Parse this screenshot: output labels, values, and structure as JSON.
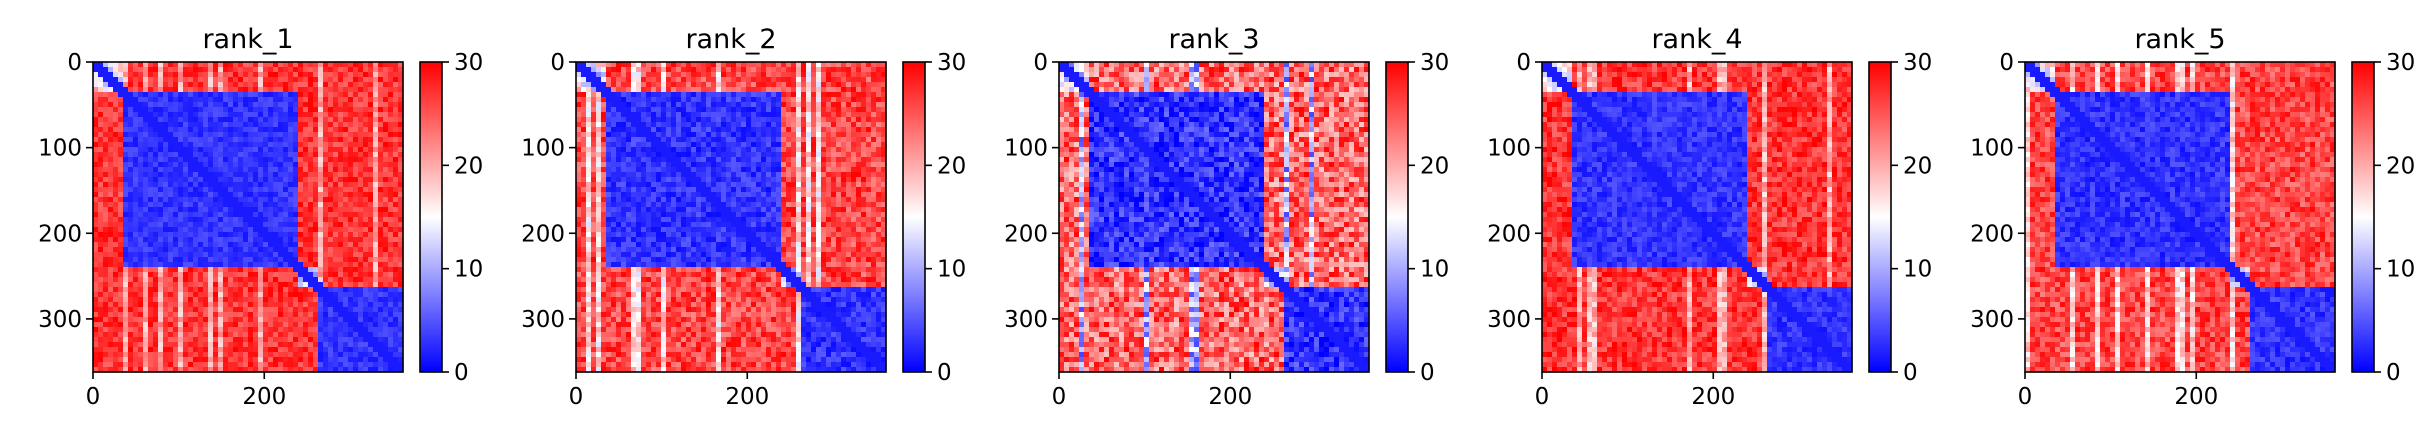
{
  "chart_data": [
    {
      "type": "heatmap",
      "title": "rank_1",
      "x_ticks": [
        0,
        200
      ],
      "y_ticks": [
        0,
        100,
        200,
        300
      ],
      "x_range": [
        0,
        362
      ],
      "y_range": [
        0,
        362
      ],
      "colorbar": {
        "min": 0,
        "max": 30,
        "ticks": [
          0,
          10,
          20,
          30
        ],
        "colormap": "bwr"
      },
      "domains": [
        {
          "start": 0,
          "end": 35,
          "level": "mixed"
        },
        {
          "start": 35,
          "end": 240,
          "level": 3
        },
        {
          "start": 240,
          "end": 262,
          "level": "mixed"
        },
        {
          "start": 262,
          "end": 362,
          "level": 3
        }
      ],
      "off_diagonal_level": 27,
      "texture": 1.0
    },
    {
      "type": "heatmap",
      "title": "rank_2",
      "x_ticks": [
        0,
        200
      ],
      "y_ticks": [
        0,
        100,
        200,
        300
      ],
      "x_range": [
        0,
        362
      ],
      "y_range": [
        0,
        362
      ],
      "colorbar": {
        "min": 0,
        "max": 30,
        "ticks": [
          0,
          10,
          20,
          30
        ],
        "colormap": "bwr"
      },
      "domains": [
        {
          "start": 0,
          "end": 35,
          "level": "mixed"
        },
        {
          "start": 35,
          "end": 240,
          "level": 3
        },
        {
          "start": 240,
          "end": 262,
          "level": "mixed"
        },
        {
          "start": 262,
          "end": 362,
          "level": 3
        }
      ],
      "off_diagonal_level": 26,
      "texture": 1.3
    },
    {
      "type": "heatmap",
      "title": "rank_3",
      "x_ticks": [
        0,
        200
      ],
      "y_ticks": [
        0,
        100,
        200,
        300
      ],
      "x_range": [
        0,
        362
      ],
      "y_range": [
        0,
        362
      ],
      "colorbar": {
        "min": 0,
        "max": 30,
        "ticks": [
          0,
          10,
          20,
          30
        ],
        "colormap": "bwr"
      },
      "domains": [
        {
          "start": 0,
          "end": 35,
          "level": "mixed"
        },
        {
          "start": 35,
          "end": 240,
          "level": 3
        },
        {
          "start": 240,
          "end": 262,
          "level": "mixed"
        },
        {
          "start": 262,
          "end": 362,
          "level": 3
        }
      ],
      "off_diagonal_level": 24,
      "texture": 2.0
    },
    {
      "type": "heatmap",
      "title": "rank_4",
      "x_ticks": [
        0,
        200
      ],
      "y_ticks": [
        0,
        100,
        200,
        300
      ],
      "x_range": [
        0,
        362
      ],
      "y_range": [
        0,
        362
      ],
      "colorbar": {
        "min": 0,
        "max": 30,
        "ticks": [
          0,
          10,
          20,
          30
        ],
        "colormap": "bwr"
      },
      "domains": [
        {
          "start": 0,
          "end": 35,
          "level": "mixed"
        },
        {
          "start": 35,
          "end": 240,
          "level": 3
        },
        {
          "start": 240,
          "end": 262,
          "level": "mixed"
        },
        {
          "start": 262,
          "end": 362,
          "level": 3
        }
      ],
      "off_diagonal_level": 27,
      "texture": 1.1
    },
    {
      "type": "heatmap",
      "title": "rank_5",
      "x_ticks": [
        0,
        200
      ],
      "y_ticks": [
        0,
        100,
        200,
        300
      ],
      "x_range": [
        0,
        362
      ],
      "y_range": [
        0,
        362
      ],
      "colorbar": {
        "min": 0,
        "max": 30,
        "ticks": [
          0,
          10,
          20,
          30
        ],
        "colormap": "bwr"
      },
      "domains": [
        {
          "start": 0,
          "end": 35,
          "level": "mixed"
        },
        {
          "start": 35,
          "end": 240,
          "level": 3
        },
        {
          "start": 240,
          "end": 262,
          "level": "mixed"
        },
        {
          "start": 262,
          "end": 362,
          "level": 3
        }
      ],
      "off_diagonal_level": 26,
      "texture": 1.2
    }
  ]
}
